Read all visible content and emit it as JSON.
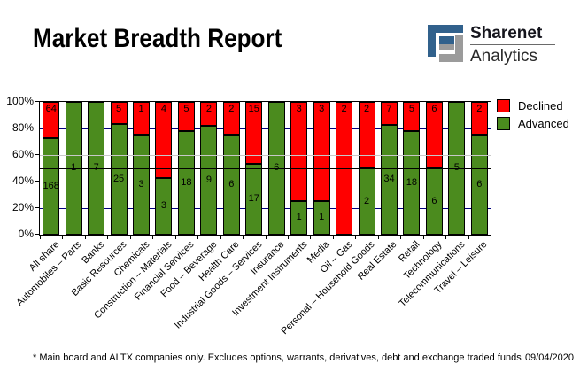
{
  "header": {
    "title": "Market Breadth Report",
    "logo": {
      "line1": "Sharenet",
      "line2": "Analytics",
      "blue": "#31618C",
      "gray": "#9B9B9B"
    }
  },
  "chart_data": {
    "type": "bar",
    "stacked": true,
    "stacking": "percent",
    "title": "Market Breadth Report",
    "xlabel": "",
    "ylabel": "",
    "ylim": [
      0,
      100
    ],
    "y_ticks": [
      "100%",
      "80%",
      "60%",
      "40%",
      "20%",
      "0%"
    ],
    "legend_position": "top-right",
    "grid": {
      "navy_lines_pct": [
        80,
        20
      ],
      "gray_lines_pct": [
        60,
        40
      ],
      "midline_pct": 50,
      "navy": "#000080",
      "gray": "#C8C8C8",
      "midline_color": "#000000"
    },
    "categories": [
      "All share",
      "Automobiles – Parts",
      "Banks",
      "Basic Resources",
      "Chemicals",
      "Construction – Materials",
      "Financial Services",
      "Food – Beverage",
      "Health Care",
      "Industrial Goods – Services",
      "Insurance",
      "Investment Instruments",
      "Media",
      "Oil – Gas",
      "Personal – Household Goods",
      "Real Estate",
      "Retail",
      "Technology",
      "Telecommunications",
      "Travel – Leisure"
    ],
    "series": [
      {
        "name": "Declined",
        "color": "#FF0000",
        "values": [
          64,
          0,
          0,
          5,
          1,
          4,
          5,
          2,
          2,
          15,
          0,
          3,
          3,
          2,
          2,
          7,
          5,
          6,
          0,
          2
        ]
      },
      {
        "name": "Advanced",
        "color": "#4B8B1E",
        "values": [
          168,
          1,
          7,
          25,
          3,
          3,
          18,
          9,
          6,
          17,
          6,
          1,
          1,
          0,
          2,
          34,
          18,
          6,
          5,
          6
        ]
      }
    ]
  },
  "footer": {
    "note": "* Main board and ALTX companies only. Excludes options, warrants, derivatives, debt and exchange traded funds",
    "date": "09/04/2020"
  }
}
